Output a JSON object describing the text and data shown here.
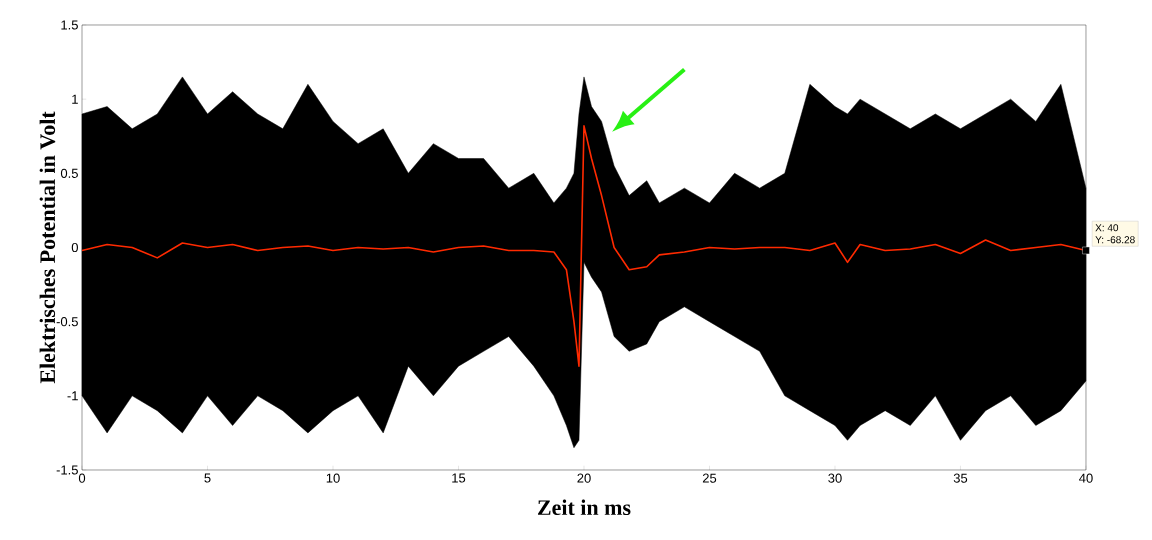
{
  "chart_data": {
    "type": "line",
    "xlabel": "Zeit in ms",
    "ylabel": "Elektrisches Potential in Volt",
    "x": [
      0,
      1,
      2,
      3,
      4,
      5,
      6,
      7,
      8,
      9,
      10,
      11,
      12,
      13,
      14,
      15,
      16,
      17,
      18,
      18.8,
      19.3,
      19.6,
      19.8,
      20.0,
      20.3,
      20.7,
      21.2,
      21.8,
      22.5,
      23,
      24,
      25,
      26,
      27,
      28,
      29,
      30,
      30.5,
      31,
      32,
      33,
      34,
      35,
      36,
      37,
      38,
      39,
      40
    ],
    "series": [
      {
        "color": "#ff2a00",
        "values": [
          -0.02,
          0.02,
          0.0,
          -0.07,
          0.03,
          0.0,
          0.02,
          -0.02,
          0.0,
          0.01,
          -0.02,
          0.0,
          -0.01,
          0.0,
          -0.03,
          0.0,
          0.01,
          -0.02,
          -0.02,
          -0.03,
          -0.15,
          -0.5,
          -0.8,
          0.82,
          0.6,
          0.35,
          0.0,
          -0.15,
          -0.13,
          -0.05,
          -0.03,
          0.0,
          -0.01,
          0.0,
          0.0,
          -0.02,
          0.03,
          -0.1,
          0.02,
          -0.02,
          -0.01,
          0.02,
          -0.04,
          0.05,
          -0.02,
          0.0,
          0.02,
          -0.02
        ],
        "upper": [
          0.9,
          0.95,
          0.8,
          0.9,
          1.15,
          0.9,
          1.05,
          0.9,
          0.8,
          1.1,
          0.85,
          0.7,
          0.8,
          0.5,
          0.7,
          0.6,
          0.6,
          0.4,
          0.5,
          0.3,
          0.4,
          0.5,
          0.9,
          1.15,
          0.95,
          0.85,
          0.55,
          0.35,
          0.45,
          0.3,
          0.4,
          0.3,
          0.5,
          0.4,
          0.5,
          1.1,
          0.95,
          0.9,
          1.0,
          0.9,
          0.8,
          0.9,
          0.8,
          0.9,
          1.0,
          0.85,
          1.1,
          0.4
        ],
        "lower": [
          -1.0,
          -1.25,
          -1.0,
          -1.1,
          -1.25,
          -1.0,
          -1.2,
          -1.0,
          -1.1,
          -1.25,
          -1.1,
          -1.0,
          -1.25,
          -0.8,
          -1.0,
          -0.8,
          -0.7,
          -0.6,
          -0.8,
          -1.0,
          -1.2,
          -1.35,
          -1.3,
          -0.1,
          -0.2,
          -0.3,
          -0.6,
          -0.7,
          -0.65,
          -0.5,
          -0.4,
          -0.5,
          -0.6,
          -0.7,
          -1.0,
          -1.1,
          -1.2,
          -1.3,
          -1.2,
          -1.1,
          -1.2,
          -1.0,
          -1.3,
          -1.1,
          -1.0,
          -1.2,
          -1.1,
          -0.9
        ]
      }
    ],
    "xlim": [
      0,
      40
    ],
    "xticks": [
      0,
      5,
      10,
      15,
      20,
      25,
      30,
      35,
      40
    ],
    "ylim": [
      -1.5,
      1.5
    ],
    "yticks": [
      -1.5,
      -1,
      -0.5,
      0,
      0.5,
      1,
      1.5
    ],
    "marker": "none",
    "line_style": "solid",
    "annotations": [
      {
        "text": "X: 40",
        "x": 40,
        "y": -0.02
      },
      "Y: -68.28"
    ]
  }
}
